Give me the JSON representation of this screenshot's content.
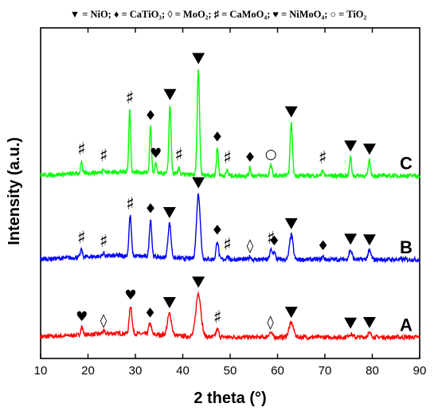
{
  "legend": {
    "text": "▼ = NiO; ♦ = CaTiO₃; ◊ = MoO₂; ♯ = CaMoO₄; ♥ = NiMoO₄; ○ = TiO₂"
  },
  "chart_data": {
    "type": "line",
    "title": "",
    "xlabel": "2 theta (°)",
    "ylabel": "Intensity (a.u.)",
    "xlim": [
      10,
      90
    ],
    "xticks": [
      10,
      20,
      30,
      40,
      50,
      60,
      70,
      80,
      90
    ],
    "y_tick_labels": false,
    "grid": false,
    "phase_legend": [
      {
        "symbol": "▼",
        "phase": "NiO",
        "label": "▼ = NiO"
      },
      {
        "symbol": "♦",
        "phase": "CaTiO₃",
        "label": "♦ = CaTiO₃"
      },
      {
        "symbol": "◊",
        "phase": "MoO₂",
        "label": "◊ = MoO₂"
      },
      {
        "symbol": "♯",
        "phase": "CaMoO₄",
        "label": "♯ = CaMoO₄"
      },
      {
        "symbol": "♥",
        "phase": "NiMoO₄",
        "label": "♥ = NiMoO₄"
      },
      {
        "symbol": "○",
        "phase": "TiO₂",
        "label": "○ = TiO₂"
      }
    ],
    "series": [
      {
        "name": "A",
        "color": "#ff0000",
        "baseline_intensity": 0.03,
        "peaks": [
          {
            "x": 18.7,
            "h": 0.025,
            "w": 0.35,
            "marker": "♥"
          },
          {
            "x": 23.3,
            "h": 0.008,
            "w": 0.35,
            "marker": "◊"
          },
          {
            "x": 29.0,
            "h": 0.09,
            "w": 0.4,
            "marker": "♥"
          },
          {
            "x": 33.1,
            "h": 0.035,
            "w": 0.4,
            "marker": "♦"
          },
          {
            "x": 37.2,
            "h": 0.07,
            "w": 0.6,
            "marker": "▼"
          },
          {
            "x": 43.3,
            "h": 0.14,
            "w": 0.75,
            "marker": "▼"
          },
          {
            "x": 47.3,
            "h": 0.025,
            "w": 0.4,
            "marker": "♯"
          },
          {
            "x": 58.5,
            "h": 0.015,
            "w": 0.5,
            "marker": "◊"
          },
          {
            "x": 62.9,
            "h": 0.045,
            "w": 0.7,
            "marker": "▼"
          },
          {
            "x": 75.4,
            "h": 0.01,
            "w": 0.6,
            "marker": "▼"
          },
          {
            "x": 79.4,
            "h": 0.012,
            "w": 0.6,
            "marker": "▼"
          }
        ]
      },
      {
        "name": "B",
        "color": "#0000ff",
        "baseline_intensity": 0.28,
        "peaks": [
          {
            "x": 18.6,
            "h": 0.025,
            "w": 0.3,
            "marker": "♯"
          },
          {
            "x": 23.3,
            "h": 0.01,
            "w": 0.3,
            "marker": "♯"
          },
          {
            "x": 28.9,
            "h": 0.13,
            "w": 0.35,
            "marker": "♯"
          },
          {
            "x": 33.2,
            "h": 0.12,
            "w": 0.35,
            "marker": "♦"
          },
          {
            "x": 37.2,
            "h": 0.11,
            "w": 0.45,
            "marker": "▼"
          },
          {
            "x": 43.3,
            "h": 0.21,
            "w": 0.55,
            "marker": "▼"
          },
          {
            "x": 47.3,
            "h": 0.06,
            "w": 0.35,
            "marker": "♦"
          },
          {
            "x": 49.4,
            "h": 0.01,
            "w": 0.3,
            "marker": "♯"
          },
          {
            "x": 54.2,
            "h": 0.01,
            "w": 0.3,
            "marker": "◊"
          },
          {
            "x": 58.6,
            "h": 0.03,
            "w": 0.35,
            "marker": "♯"
          },
          {
            "x": 59.3,
            "h": 0.025,
            "w": 0.35,
            "marker": "♦"
          },
          {
            "x": 62.9,
            "h": 0.08,
            "w": 0.5,
            "marker": "▼"
          },
          {
            "x": 69.6,
            "h": 0.01,
            "w": 0.3,
            "marker": "♦"
          },
          {
            "x": 75.4,
            "h": 0.03,
            "w": 0.45,
            "marker": "▼"
          },
          {
            "x": 79.4,
            "h": 0.028,
            "w": 0.45,
            "marker": "▼"
          }
        ]
      },
      {
        "name": "C",
        "color": "#00ff00",
        "baseline_intensity": 0.55,
        "peaks": [
          {
            "x": 18.6,
            "h": 0.04,
            "w": 0.25,
            "marker": "♯"
          },
          {
            "x": 23.3,
            "h": 0.015,
            "w": 0.25,
            "marker": "♯"
          },
          {
            "x": 28.8,
            "h": 0.2,
            "w": 0.28,
            "marker": "♯"
          },
          {
            "x": 33.2,
            "h": 0.15,
            "w": 0.28,
            "marker": "♦"
          },
          {
            "x": 34.3,
            "h": 0.03,
            "w": 0.25,
            "marker": "♥"
          },
          {
            "x": 37.3,
            "h": 0.22,
            "w": 0.32,
            "marker": "▼"
          },
          {
            "x": 39.2,
            "h": 0.025,
            "w": 0.25,
            "marker": "♯"
          },
          {
            "x": 43.3,
            "h": 0.34,
            "w": 0.35,
            "marker": "▼"
          },
          {
            "x": 47.3,
            "h": 0.09,
            "w": 0.28,
            "marker": "♦"
          },
          {
            "x": 49.4,
            "h": 0.02,
            "w": 0.25,
            "marker": "♯"
          },
          {
            "x": 54.2,
            "h": 0.025,
            "w": 0.25,
            "marker": "♦"
          },
          {
            "x": 58.6,
            "h": 0.035,
            "w": 0.3,
            "marker": "○"
          },
          {
            "x": 62.9,
            "h": 0.17,
            "w": 0.35,
            "marker": "▼"
          },
          {
            "x": 69.5,
            "h": 0.02,
            "w": 0.25,
            "marker": "♯"
          },
          {
            "x": 75.4,
            "h": 0.06,
            "w": 0.3,
            "marker": "▼"
          },
          {
            "x": 79.4,
            "h": 0.05,
            "w": 0.3,
            "marker": "▼"
          }
        ]
      }
    ]
  }
}
